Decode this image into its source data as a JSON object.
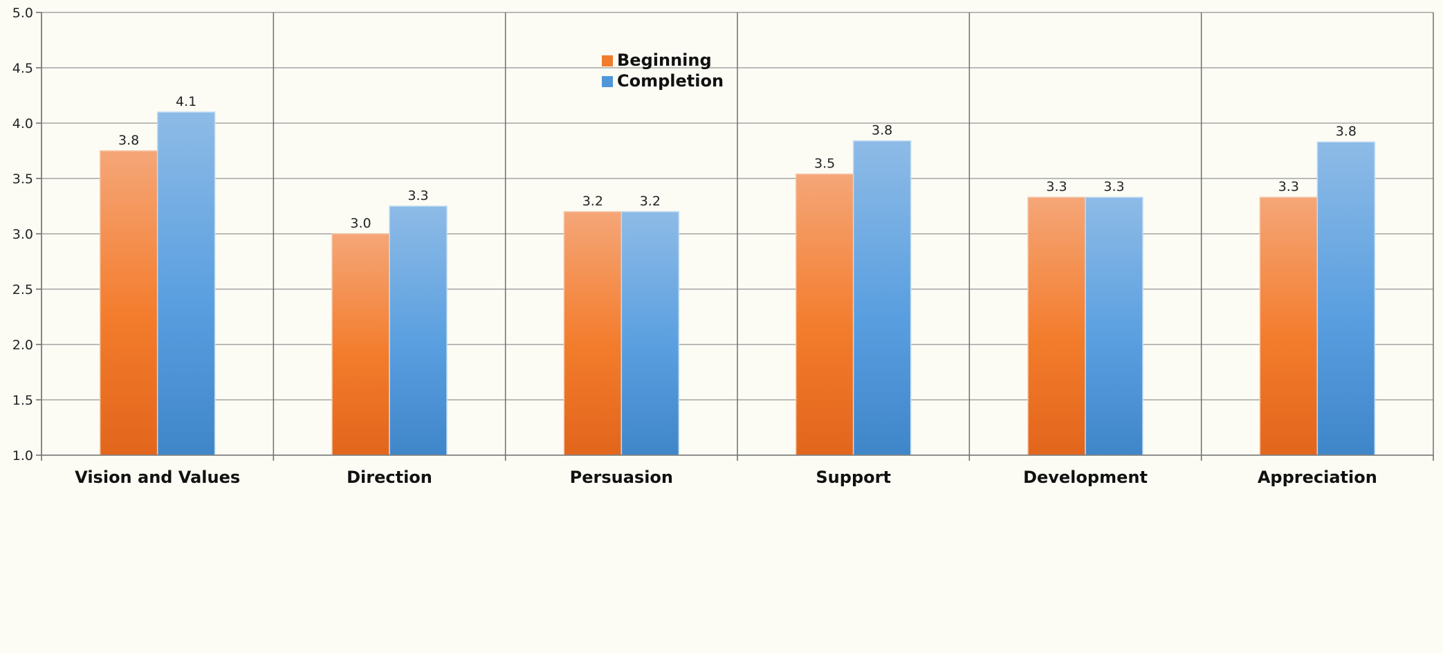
{
  "chart_data": {
    "type": "bar",
    "title": "",
    "xlabel": "",
    "ylabel": "",
    "ylim": [
      1.0,
      5.0
    ],
    "yticks": [
      "1.0",
      "1.5",
      "2.0",
      "2.5",
      "3.0",
      "3.5",
      "4.0",
      "4.5",
      "5.0"
    ],
    "grid": true,
    "legend_position": "top-center",
    "categories": [
      "Vision and Values",
      "Direction",
      "Persuasion",
      "Support",
      "Development",
      "Appreciation"
    ],
    "series": [
      {
        "name": "Beginning",
        "color": "#f07c2e",
        "values": [
          3.75,
          3.0,
          3.2,
          3.54,
          3.33,
          3.33
        ],
        "labels": [
          "3.8",
          "3.0",
          "3.2",
          "3.5",
          "3.3",
          "3.3"
        ]
      },
      {
        "name": "Completion",
        "color": "#4f97d9",
        "values": [
          4.1,
          3.25,
          3.2,
          3.84,
          3.33,
          3.83
        ],
        "labels": [
          "4.1",
          "3.3",
          "3.2",
          "3.8",
          "3.3",
          "3.8"
        ]
      }
    ]
  }
}
